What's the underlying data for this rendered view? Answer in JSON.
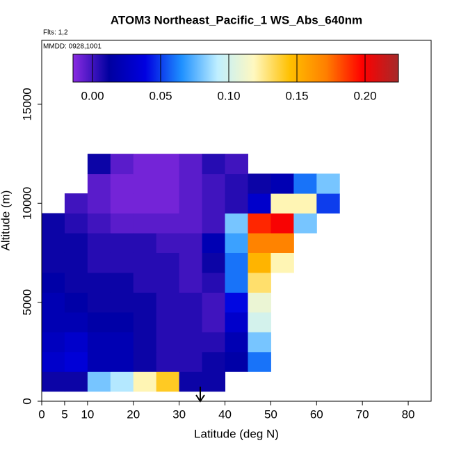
{
  "chart_data": {
    "type": "curtain",
    "title": "ATOM3 Northeast_Pacific_1 WS_Abs_640nm",
    "annotations": [
      "Flts: 1,2",
      "MMDD: 0928,1001"
    ],
    "xlabel": "Latitude (deg N)",
    "ylabel": "Altitude (m)",
    "xlim": [
      0,
      85
    ],
    "xticks": [
      0,
      5,
      10,
      20,
      30,
      40,
      50,
      60,
      70,
      80
    ],
    "ylim": [
      0,
      18230
    ],
    "yticks": [
      0,
      5000,
      10000,
      15000
    ],
    "x_bins": [
      0,
      5,
      10,
      15,
      20,
      25,
      30,
      35,
      40,
      45,
      50,
      55,
      60,
      65
    ],
    "y_bins": [
      500,
      1500,
      2500,
      3500,
      4500,
      5500,
      6500,
      7500,
      8500,
      9500,
      10500,
      11500,
      12500
    ],
    "values": [
      [
        0.01,
        0.01,
        0.08,
        0.09,
        0.12,
        0.14,
        0.01,
        0.01,
        null,
        null,
        null,
        null,
        null
      ],
      [
        0.03,
        0.035,
        0.02,
        0.02,
        0.01,
        0.005,
        0.005,
        0.01,
        0.015,
        0.06,
        null,
        null,
        null
      ],
      [
        0.025,
        0.03,
        0.02,
        0.02,
        0.01,
        0.005,
        0.005,
        0.005,
        0.02,
        0.08,
        null,
        null,
        null
      ],
      [
        0.02,
        0.02,
        0.015,
        0.015,
        0.01,
        0.005,
        0.005,
        0.0,
        0.03,
        0.1,
        null,
        null,
        null
      ],
      [
        0.02,
        0.015,
        0.01,
        0.01,
        0.01,
        0.005,
        0.005,
        0.0,
        0.04,
        0.11,
        null,
        null,
        null
      ],
      [
        0.015,
        0.01,
        0.01,
        0.01,
        0.005,
        0.005,
        0.0,
        0.005,
        0.06,
        0.13,
        null,
        null,
        null
      ],
      [
        0.01,
        0.01,
        0.005,
        0.005,
        0.005,
        0.005,
        0.0,
        0.01,
        0.06,
        0.15,
        0.12,
        null,
        null
      ],
      [
        0.01,
        0.01,
        0.005,
        0.005,
        0.005,
        0.0,
        0.0,
        0.02,
        0.07,
        0.17,
        0.17,
        null,
        null
      ],
      [
        0.01,
        0.005,
        0.0,
        -0.005,
        -0.005,
        -0.005,
        -0.005,
        0.0,
        0.08,
        0.19,
        0.2,
        0.08,
        null
      ],
      [
        null,
        0.0,
        -0.005,
        -0.01,
        -0.01,
        -0.01,
        -0.005,
        0.0,
        0.005,
        0.03,
        0.12,
        0.12,
        0.05
      ],
      [
        null,
        null,
        -0.005,
        -0.01,
        -0.01,
        -0.01,
        -0.005,
        0.0,
        0.005,
        0.01,
        0.02,
        0.06,
        0.08
      ],
      [
        null,
        null,
        0.01,
        -0.005,
        -0.01,
        -0.01,
        -0.005,
        0.005,
        0.0,
        null,
        null,
        null,
        null
      ]
    ],
    "colorbar": {
      "lim": [
        -0.0143,
        0.2245
      ],
      "ticks": [
        {
          "value": 0,
          "label": "0.00"
        },
        0.05,
        {
          "value": 0.1,
          "label": "0.10"
        },
        0.15,
        {
          "value": 0.2,
          "label": "0.20"
        }
      ],
      "colors": [
        "#8a2be2",
        "#0000a0",
        "#0000e0",
        "#1e90ff",
        "#bfefff",
        "#fff8c0",
        "#ffc000",
        "#ff7f00",
        "#ff0000",
        "#a52a2a"
      ]
    }
  }
}
